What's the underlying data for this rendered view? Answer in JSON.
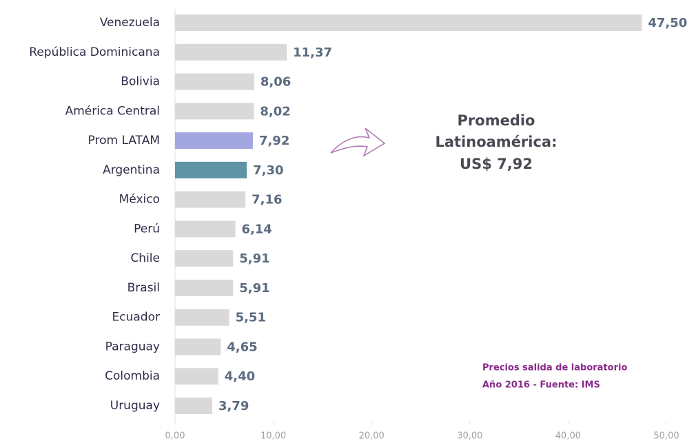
{
  "chart_data": {
    "type": "bar",
    "orientation": "horizontal",
    "categories": [
      "Venezuela",
      "República Dominicana",
      "Bolivia",
      "América Central",
      "Prom LATAM",
      "Argentina",
      "México",
      "Perú",
      "Chile",
      "Brasil",
      "Ecuador",
      "Paraguay",
      "Colombia",
      "Uruguay"
    ],
    "values": [
      47.5,
      11.37,
      8.06,
      8.02,
      7.92,
      7.3,
      7.16,
      6.14,
      5.91,
      5.91,
      5.51,
      4.65,
      4.4,
      3.79
    ],
    "value_labels": [
      "47,50",
      "11,37",
      "8,06",
      "8,02",
      "7,92",
      "7,30",
      "7,16",
      "6,14",
      "5,91",
      "5,91",
      "5,51",
      "4,65",
      "4,40",
      "3,79"
    ],
    "colors": [
      "#d9d9d9",
      "#d9d9d9",
      "#d9d9d9",
      "#d9d9d9",
      "#a2a7e2",
      "#5f94a4",
      "#d9d9d9",
      "#d9d9d9",
      "#d9d9d9",
      "#d9d9d9",
      "#d9d9d9",
      "#d9d9d9",
      "#d9d9d9",
      "#d9d9d9"
    ],
    "xlim": [
      0,
      50
    ],
    "xticks": [
      {
        "value": 0,
        "label": "0,00"
      },
      {
        "value": 10,
        "label": "10,00"
      },
      {
        "value": 20,
        "label": "20,00"
      },
      {
        "value": 30,
        "label": "30,00"
      },
      {
        "value": 40,
        "label": "40,00"
      },
      {
        "value": 50,
        "label": "50,00"
      }
    ],
    "annotation": [
      "Promedio",
      "Latinoamérica:",
      "US$ 7,92"
    ],
    "note": [
      "Precios salida de laboratorio",
      "Año 2016 - Fuente: IMS"
    ]
  }
}
